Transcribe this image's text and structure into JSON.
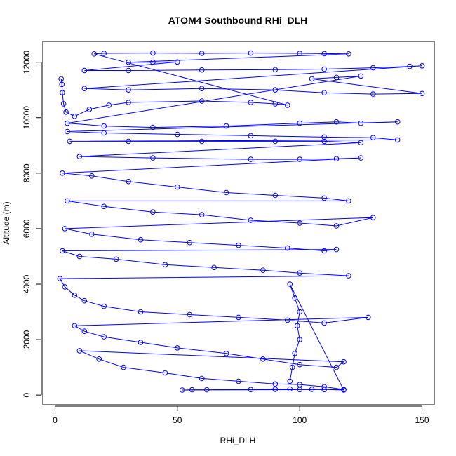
{
  "chart_data": {
    "type": "scatter",
    "title": "ATOM4 Southbound RHi_DLH",
    "xlabel": "RHi_DLH",
    "ylabel": "Altitude (m)",
    "xlim": [
      -5,
      155
    ],
    "ylim": [
      -350,
      12750
    ],
    "x_ticks": [
      0,
      50,
      100,
      150
    ],
    "y_ticks": [
      0,
      2000,
      4000,
      6000,
      8000,
      10000,
      12000
    ],
    "grid": false,
    "legend": "none",
    "marker": "open-circle",
    "connected": true,
    "series": [
      {
        "color": "#0000ff",
        "points": [
          [
            2.5,
            11400
          ],
          [
            2.8,
            11200
          ],
          [
            3.0,
            10900
          ],
          [
            3.5,
            10500
          ],
          [
            4.5,
            10200
          ],
          [
            8,
            10050
          ],
          [
            14,
            10300
          ],
          [
            22,
            10450
          ],
          [
            30,
            10550
          ],
          [
            60,
            10600
          ],
          [
            80,
            10550
          ],
          [
            90,
            10500
          ],
          [
            95,
            10450
          ],
          [
            16,
            12300
          ],
          [
            20,
            12320
          ],
          [
            40,
            12330
          ],
          [
            60,
            12320
          ],
          [
            80,
            12330
          ],
          [
            100,
            12320
          ],
          [
            110,
            12310
          ],
          [
            120,
            12300
          ],
          [
            30,
            12000
          ],
          [
            40,
            12000
          ],
          [
            50,
            12010
          ],
          [
            12,
            11700
          ],
          [
            30,
            11700
          ],
          [
            60,
            11720
          ],
          [
            90,
            11730
          ],
          [
            110,
            11750
          ],
          [
            130,
            11800
          ],
          [
            145,
            11850
          ],
          [
            150,
            11870
          ],
          [
            12,
            11050
          ],
          [
            30,
            11000
          ],
          [
            60,
            11050
          ],
          [
            90,
            11000
          ],
          [
            110,
            10900
          ],
          [
            130,
            10850
          ],
          [
            150,
            10870
          ],
          [
            105,
            11400
          ],
          [
            115,
            11450
          ],
          [
            125,
            11500
          ],
          [
            5,
            9800
          ],
          [
            20,
            9700
          ],
          [
            40,
            9650
          ],
          [
            70,
            9700
          ],
          [
            100,
            9800
          ],
          [
            115,
            9850
          ],
          [
            125,
            9800
          ],
          [
            140,
            9850
          ],
          [
            5,
            9500
          ],
          [
            20,
            9450
          ],
          [
            50,
            9400
          ],
          [
            80,
            9350
          ],
          [
            110,
            9300
          ],
          [
            130,
            9280
          ],
          [
            140,
            9200
          ],
          [
            6,
            9150
          ],
          [
            30,
            9150
          ],
          [
            60,
            9150
          ],
          [
            90,
            9150
          ],
          [
            110,
            9150
          ],
          [
            125,
            9100
          ],
          [
            10,
            8600
          ],
          [
            40,
            8550
          ],
          [
            80,
            8500
          ],
          [
            100,
            8500
          ],
          [
            115,
            8520
          ],
          [
            125,
            8550
          ],
          [
            3,
            8000
          ],
          [
            15,
            7900
          ],
          [
            30,
            7700
          ],
          [
            50,
            7500
          ],
          [
            70,
            7300
          ],
          [
            90,
            7200
          ],
          [
            110,
            7100
          ],
          [
            120,
            7000
          ],
          [
            5,
            7000
          ],
          [
            20,
            6800
          ],
          [
            40,
            6600
          ],
          [
            60,
            6500
          ],
          [
            80,
            6300
          ],
          [
            100,
            6200
          ],
          [
            115,
            6100
          ],
          [
            130,
            6400
          ],
          [
            4,
            6000
          ],
          [
            15,
            5800
          ],
          [
            35,
            5600
          ],
          [
            55,
            5500
          ],
          [
            75,
            5400
          ],
          [
            95,
            5300
          ],
          [
            110,
            5200
          ],
          [
            115,
            5250
          ],
          [
            3,
            5200
          ],
          [
            10,
            5000
          ],
          [
            25,
            4900
          ],
          [
            45,
            4700
          ],
          [
            65,
            4600
          ],
          [
            85,
            4500
          ],
          [
            100,
            4400
          ],
          [
            120,
            4300
          ],
          [
            2,
            4200
          ],
          [
            4,
            3900
          ],
          [
            8,
            3600
          ],
          [
            12,
            3400
          ],
          [
            20,
            3200
          ],
          [
            35,
            3000
          ],
          [
            55,
            2900
          ],
          [
            75,
            2800
          ],
          [
            95,
            2700
          ],
          [
            110,
            2600
          ],
          [
            128,
            2800
          ],
          [
            8,
            2500
          ],
          [
            12,
            2300
          ],
          [
            20,
            2100
          ],
          [
            35,
            1900
          ],
          [
            50,
            1700
          ],
          [
            70,
            1500
          ],
          [
            85,
            1300
          ],
          [
            100,
            1100
          ],
          [
            115,
            1000
          ],
          [
            118,
            1200
          ],
          [
            10,
            1600
          ],
          [
            18,
            1300
          ],
          [
            28,
            1000
          ],
          [
            45,
            800
          ],
          [
            60,
            600
          ],
          [
            75,
            500
          ],
          [
            90,
            400
          ],
          [
            100,
            380
          ],
          [
            110,
            300
          ],
          [
            118,
            200
          ],
          [
            52,
            180
          ],
          [
            56,
            190
          ],
          [
            62,
            190
          ],
          [
            80,
            200
          ],
          [
            90,
            210
          ],
          [
            96,
            220
          ],
          [
            100,
            200
          ],
          [
            105,
            210
          ],
          [
            110,
            200
          ],
          [
            118,
            180
          ],
          [
            96,
            4000
          ],
          [
            98,
            3500
          ],
          [
            100,
            3000
          ],
          [
            99,
            2500
          ],
          [
            100,
            2000
          ],
          [
            98,
            1500
          ],
          [
            97,
            1000
          ],
          [
            96,
            500
          ]
        ]
      }
    ]
  }
}
